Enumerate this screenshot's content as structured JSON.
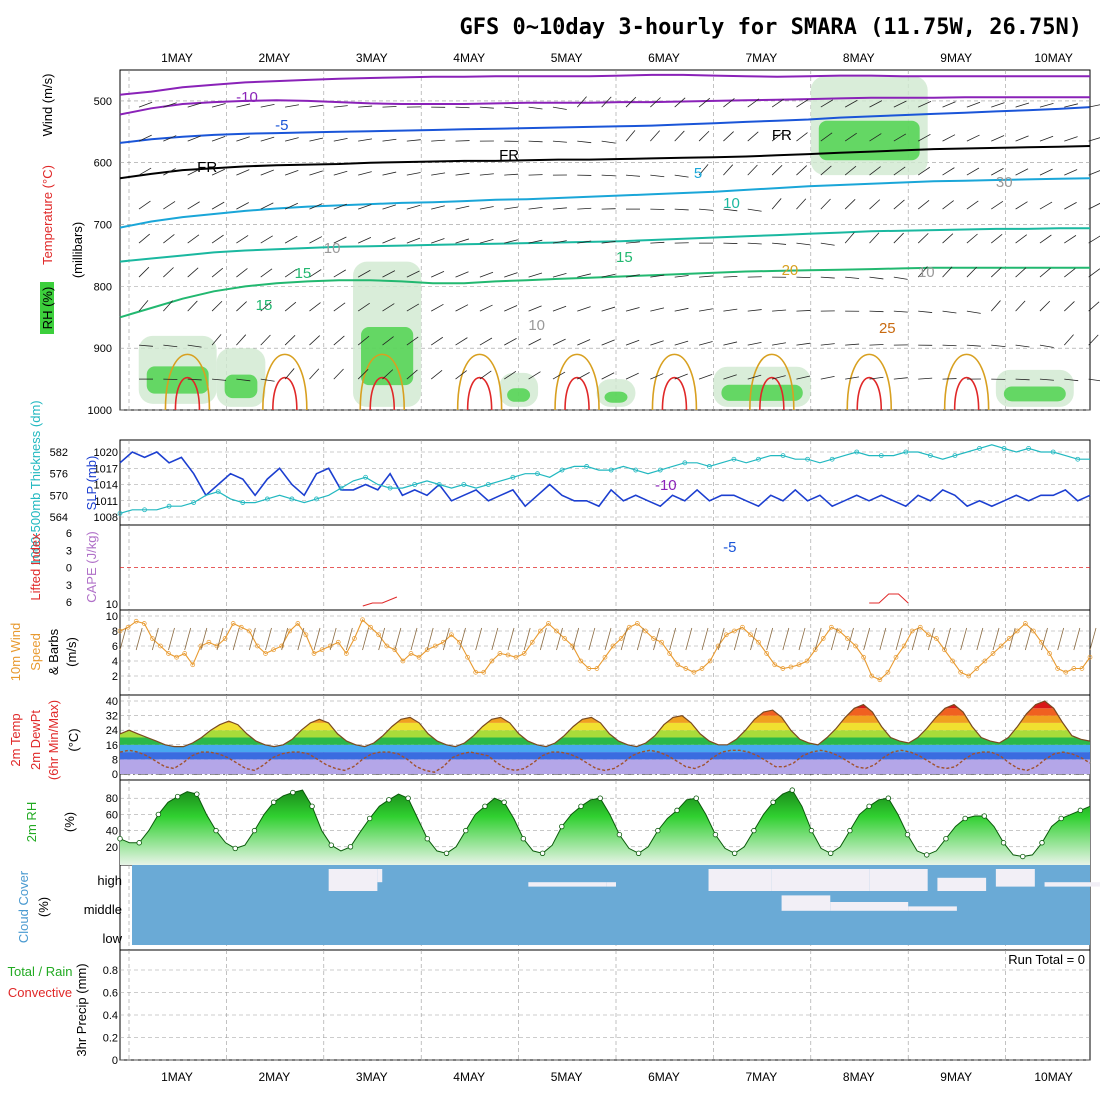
{
  "title": "GFS 0~10day 3-hourly for SMARA (11.75W, 26.75N)",
  "colors": {
    "purple": "#8a22b8",
    "blue": "#1a55d8",
    "cyan": "#1aa6d8",
    "teal": "#1ab8a0",
    "green": "#22b870",
    "orange": "#d8a020",
    "dark_orange": "#c86a10",
    "red": "#e02828",
    "slp": "#1c3fd0",
    "thick": "#22b8c0",
    "wind10": "#e89a30",
    "rh": "#22aa22",
    "cloud": "#6aaad6",
    "grid": "#999999"
  },
  "chart_data": {
    "type": "meteogram",
    "x_date_labels": [
      "1MAY",
      "2MAY",
      "3MAY",
      "4MAY",
      "5MAY",
      "6MAY",
      "7MAY",
      "8MAY",
      "9MAY",
      "10MAY"
    ],
    "upper_air": {
      "ylabel_parts": [
        "RH (%)",
        "Temperature (°C)",
        "Wind (m/s)"
      ],
      "axis_label": "(millibars)",
      "yticks": [
        "500",
        "600",
        "700",
        "800",
        "900",
        "1000"
      ],
      "ytick_values": [
        500,
        600,
        700,
        800,
        900,
        1000
      ],
      "ylim": [
        450,
        1000
      ],
      "contour_labels": [
        "-10",
        "-10",
        "-5",
        "-5",
        "FR",
        "FR",
        "FR",
        "5",
        "10",
        "15",
        "15",
        "15",
        "20",
        "25",
        "10",
        "10",
        "10",
        "30"
      ],
      "isotherms": [
        {
          "name": "-10",
          "color": "purple",
          "width": 2,
          "p": [
            490,
            485,
            478,
            474,
            470,
            468,
            466,
            464,
            463,
            462,
            461,
            461,
            460,
            460,
            460,
            460,
            459,
            458,
            458,
            459,
            460,
            461,
            460,
            459,
            459,
            460,
            460,
            460,
            460,
            460,
            460,
            460
          ]
        },
        {
          "name": "-10b",
          "color": "purple",
          "width": 2,
          "p": [
            522,
            512,
            505,
            502,
            500,
            499,
            500,
            502,
            504,
            505,
            505,
            505,
            504,
            503,
            503,
            503,
            502,
            502,
            501,
            500,
            499,
            498,
            497,
            496,
            495,
            495,
            495,
            494,
            494,
            494,
            494,
            494
          ]
        },
        {
          "name": "-5",
          "color": "blue",
          "width": 2,
          "p": [
            568,
            562,
            558,
            555,
            553,
            552,
            551,
            550,
            549,
            548,
            547,
            546,
            545,
            544,
            543,
            542,
            541,
            540,
            538,
            536,
            534,
            532,
            530,
            527,
            525,
            523,
            521,
            519,
            517,
            515,
            513,
            510
          ]
        },
        {
          "name": "FR",
          "color": "black",
          "width": 2,
          "p": [
            625,
            618,
            612,
            609,
            606,
            604,
            603,
            602,
            600,
            599,
            598,
            597,
            597,
            596,
            595,
            595,
            594,
            593,
            592,
            591,
            590,
            588,
            586,
            584,
            582,
            580,
            578,
            577,
            576,
            575,
            574,
            573
          ]
        },
        {
          "name": "5",
          "color": "cyan",
          "width": 2,
          "p": [
            705,
            695,
            688,
            683,
            678,
            674,
            671,
            669,
            667,
            665,
            664,
            662,
            660,
            659,
            657,
            655,
            653,
            651,
            649,
            647,
            644,
            641,
            638,
            636,
            634,
            632,
            630,
            629,
            628,
            627,
            626,
            625
          ]
        },
        {
          "name": "10",
          "color": "teal",
          "width": 2,
          "p": [
            760,
            755,
            750,
            745,
            742,
            740,
            738,
            736,
            735,
            734,
            733,
            732,
            731,
            730,
            729,
            728,
            727,
            725,
            723,
            721,
            719,
            717,
            715,
            713,
            711,
            710,
            709,
            708,
            707,
            707,
            706,
            706
          ]
        },
        {
          "name": "15",
          "color": "green",
          "width": 2,
          "p": [
            850,
            835,
            820,
            808,
            800,
            795,
            792,
            790,
            790,
            792,
            795,
            795,
            792,
            790,
            788,
            786,
            784,
            782,
            780,
            778,
            776,
            775,
            774,
            773,
            772,
            771,
            770,
            770,
            770,
            770,
            770,
            770
          ]
        }
      ]
    },
    "slp_thickness": {
      "left_label": "1000-500mb Thickness (dm)",
      "right_label": "SLP (mb)",
      "thickness_ticks": [
        "582",
        "576",
        "570",
        "564"
      ],
      "slp_ticks": [
        "1020",
        "1017",
        "1014",
        "1011",
        "1008"
      ],
      "slp": [
        1018,
        1020,
        1019,
        1020,
        1018,
        1019,
        1016,
        1012,
        1014,
        1016,
        1015,
        1012,
        1015,
        1017,
        1014,
        1012,
        1016,
        1017,
        1013,
        1013,
        1014,
        1013,
        1016,
        1012,
        1013,
        1012,
        1014,
        1011,
        1012,
        1013,
        1011,
        1012,
        1013,
        1010,
        1012,
        1014,
        1012,
        1011,
        1011,
        1010,
        1013,
        1011,
        1012,
        1011,
        1010,
        1012,
        1011,
        1013,
        1011,
        1012,
        1012,
        1011,
        1010,
        1012,
        1011,
        1013,
        1011,
        1012,
        1010,
        1011,
        1012,
        1011,
        1012,
        1011,
        1010,
        1012,
        1011,
        1013,
        1012,
        1010,
        1011,
        1010,
        1011,
        1012,
        1011,
        1012,
        1012,
        1013,
        1011,
        1012
      ],
      "thickness": [
        565,
        566,
        566,
        566,
        567,
        567,
        568,
        570,
        571,
        569,
        568,
        568,
        569,
        570,
        569,
        568,
        569,
        570,
        572,
        574,
        575,
        573,
        572,
        572,
        573,
        574,
        573,
        572,
        573,
        572,
        573,
        574,
        575,
        576,
        576,
        575,
        577,
        578,
        578,
        577,
        577,
        578,
        577,
        576,
        577,
        578,
        579,
        579,
        578,
        579,
        580,
        579,
        580,
        581,
        581,
        580,
        580,
        579,
        580,
        581,
        582,
        581,
        581,
        581,
        582,
        582,
        581,
        580,
        581,
        582,
        583,
        584,
        583,
        582,
        583,
        582,
        582,
        581,
        580,
        580
      ]
    },
    "cape_li": {
      "left_label": "Lifted Index",
      "right_label": "CAPE (J/kg)",
      "li_ticks": [
        "6",
        "3",
        "0",
        "3",
        "6"
      ],
      "cape_ticks": [
        "10"
      ],
      "cape_points": [
        [
          2.4,
          0
        ],
        [
          2.5,
          1
        ],
        [
          2.6,
          1
        ],
        [
          2.75,
          3
        ],
        [
          7.6,
          1
        ],
        [
          7.7,
          1
        ],
        [
          7.8,
          4
        ],
        [
          7.9,
          4
        ],
        [
          8.0,
          1
        ]
      ]
    },
    "wind10": {
      "ylabel": [
        "10m Wind",
        "Speed",
        "& Barbs",
        "(m/s)"
      ],
      "yticks": [
        "10",
        "8",
        "6",
        "4",
        "2"
      ],
      "speed": [
        8,
        8.5,
        9.3,
        9,
        7,
        6,
        5,
        4.5,
        5,
        3.5,
        6,
        6.5,
        6,
        7,
        9,
        8.5,
        8,
        6,
        5,
        5.5,
        6,
        8,
        9,
        7.5,
        5,
        5.5,
        6,
        6.5,
        5,
        7,
        9.5,
        8.5,
        7.5,
        6,
        5.5,
        4,
        5,
        4.5,
        5.5,
        6,
        6.5,
        7.5,
        6.5,
        4.5,
        2.5,
        2.5,
        4,
        5,
        4.8,
        4.5,
        5,
        6.5,
        8,
        9,
        8,
        7,
        6,
        4,
        3,
        3,
        4.5,
        6,
        7,
        8.5,
        9,
        8,
        7,
        6.5,
        5,
        3.5,
        3,
        2.5,
        3,
        4,
        6,
        7.5,
        8,
        8.5,
        7.5,
        6.5,
        5,
        3.5,
        3,
        3.2,
        3.5,
        4,
        5.5,
        7,
        8.5,
        8,
        7,
        6,
        4.5,
        2,
        1.5,
        2.5,
        4.5,
        6,
        8,
        8.5,
        7.5,
        7,
        5.5,
        4,
        2.5,
        2,
        3,
        4,
        5,
        6,
        7,
        8,
        9,
        8,
        6.5,
        5,
        3,
        2.5,
        3,
        3,
        4.5
      ]
    },
    "temp2m": {
      "ylabel": [
        "2m Temp",
        "2m DewPt",
        "(6hr Min/Max)",
        "(°C)"
      ],
      "yticks": [
        "40",
        "32",
        "24",
        "16",
        "8",
        "0"
      ],
      "temp": [
        22,
        24,
        22,
        20,
        18,
        16,
        15,
        15,
        17,
        20,
        24,
        27,
        29,
        27,
        22,
        18,
        16,
        15,
        16,
        19,
        24,
        28,
        30,
        28,
        22,
        18,
        16,
        15,
        17,
        21,
        26,
        30,
        31,
        28,
        22,
        18,
        16,
        15,
        17,
        21,
        26,
        30,
        31,
        28,
        22,
        18,
        16,
        15,
        17,
        21,
        26,
        30,
        31,
        28,
        22,
        18,
        16,
        15,
        17,
        21,
        27,
        31,
        32,
        28,
        22,
        18,
        16,
        16,
        19,
        24,
        30,
        34,
        35,
        31,
        24,
        19,
        17,
        16,
        20,
        25,
        31,
        36,
        38,
        34,
        26,
        20,
        18,
        17,
        20,
        25,
        31,
        36,
        38,
        34,
        26,
        20,
        18,
        17,
        20,
        26,
        33,
        38,
        40,
        36,
        28,
        21,
        19,
        18
      ],
      "dewpt": [
        12,
        13,
        12,
        10,
        7,
        4,
        3,
        6,
        10,
        12,
        12,
        11,
        9,
        6,
        3,
        2,
        5,
        9,
        11,
        12,
        12,
        11,
        8,
        5,
        3,
        2,
        4,
        8,
        11,
        12,
        12,
        11,
        8,
        4,
        2,
        1,
        4,
        9,
        11,
        12,
        11,
        10,
        6,
        3,
        2,
        3,
        6,
        10,
        12,
        12,
        11,
        9,
        6,
        3,
        2,
        3,
        6,
        10,
        12,
        13,
        12,
        10,
        7,
        4,
        3,
        5,
        9,
        12,
        13,
        13,
        12,
        10,
        7,
        4,
        4,
        6,
        10,
        12,
        13,
        12,
        10,
        7,
        4,
        3,
        5,
        9,
        12,
        13,
        12,
        10,
        7,
        4,
        3,
        4,
        8,
        11,
        12,
        12,
        10,
        6,
        3,
        2,
        4,
        8,
        11,
        12,
        11,
        9,
        6
      ]
    },
    "rh2m": {
      "ylabel": [
        "2m RH",
        "(%)"
      ],
      "yticks": [
        "80",
        "60",
        "40",
        "20"
      ],
      "rh": [
        30,
        25,
        25,
        40,
        60,
        75,
        82,
        88,
        85,
        60,
        40,
        25,
        18,
        22,
        40,
        60,
        75,
        83,
        87,
        90,
        70,
        40,
        22,
        15,
        20,
        38,
        55,
        70,
        78,
        85,
        80,
        55,
        30,
        15,
        12,
        20,
        40,
        60,
        70,
        80,
        75,
        55,
        30,
        15,
        12,
        22,
        45,
        60,
        70,
        78,
        80,
        60,
        35,
        18,
        12,
        20,
        40,
        55,
        65,
        78,
        80,
        60,
        35,
        18,
        12,
        20,
        40,
        60,
        75,
        85,
        90,
        70,
        40,
        18,
        12,
        20,
        40,
        60,
        70,
        78,
        80,
        60,
        35,
        15,
        10,
        15,
        30,
        45,
        55,
        58,
        58,
        45,
        25,
        10,
        8,
        10,
        25,
        45,
        55,
        60,
        65,
        70
      ]
    },
    "cloud": {
      "ylabel": [
        "Cloud Cover",
        "(%)"
      ],
      "levels": [
        "high",
        "middle",
        "low"
      ]
    },
    "precip": {
      "ylabel": [
        "Total / Rain",
        "Convective",
        "3hr Precip (mm)"
      ],
      "yticks": [
        "0.8",
        "0.6",
        "0.4",
        "0.2",
        "0"
      ],
      "run_total": "Run Total = 0",
      "values": []
    }
  }
}
